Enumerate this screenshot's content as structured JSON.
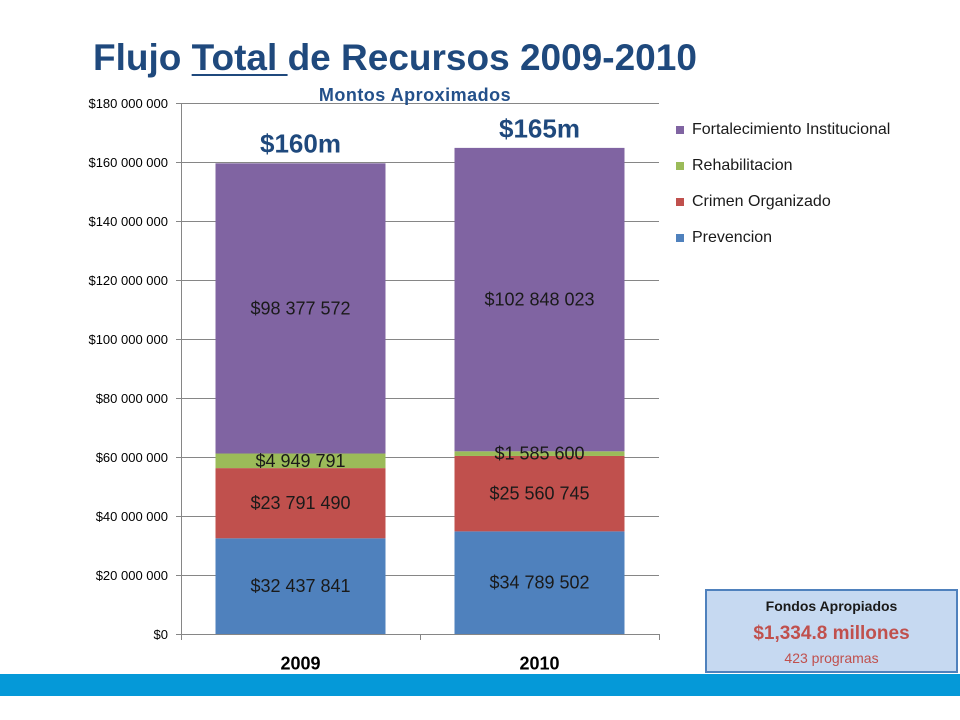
{
  "slide": {
    "colors": {
      "title": "#1F497D",
      "subtitle": "#23508A",
      "band": "#0599D8"
    }
  },
  "chart_data": {
    "type": "bar",
    "stacked": true,
    "title": "Flujo Total de Recursos 2009-2010",
    "title_underlined": "Total ",
    "subtitle": "Montos Aproximados",
    "categories": [
      "2009",
      "2010"
    ],
    "series": [
      {
        "name": "Prevencion",
        "color": "#4F81BD",
        "values": [
          32437841,
          34789502
        ],
        "data_labels": [
          "$32 437 841",
          "$34 789 502"
        ]
      },
      {
        "name": "Crimen Organizado",
        "color": "#C0504D",
        "values": [
          23791490,
          25560745
        ],
        "data_labels": [
          "$23 791 490",
          "$25 560 745"
        ]
      },
      {
        "name": "Rehabilitacion",
        "color": "#9BBB59",
        "values": [
          4949791,
          1585600
        ],
        "data_labels": [
          "$4 949 791",
          "$1 585 600"
        ]
      },
      {
        "name": "Fortalecimiento Institucional",
        "color": "#8064A2",
        "values": [
          98377572,
          102848023
        ],
        "data_labels": [
          "$98 377 572",
          "$102 848 023"
        ]
      }
    ],
    "total_labels": [
      "$160m",
      "$165m"
    ],
    "ylim": [
      0,
      180000000
    ],
    "yticks": [
      0,
      20000000,
      40000000,
      60000000,
      80000000,
      100000000,
      120000000,
      140000000,
      160000000,
      180000000
    ],
    "ytick_labels": [
      "$0",
      "$20 000 000",
      "$40 000 000",
      "$60 000 000",
      "$80 000 000",
      "$100 000 000",
      "$120 000 000",
      "$140 000 000",
      "$160 000 000",
      "$180 000 000"
    ],
    "grid": true,
    "legend_position": "right"
  },
  "info_box": {
    "heading": "Fondos Apropiados",
    "amount": "$1,334.8 millones",
    "programs": "423 programas",
    "background": "#C6D9F1",
    "border": "#4F81BD",
    "accent": "#C0504D"
  }
}
